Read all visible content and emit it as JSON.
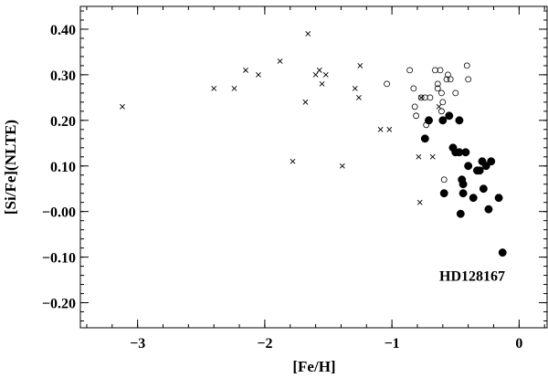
{
  "chart_data": {
    "type": "scatter",
    "xlabel": "[Fe/H]",
    "ylabel": "[Si/Fe](NLTE)",
    "xlim": [
      -3.45,
      0.22
    ],
    "ylim": [
      -0.255,
      0.45
    ],
    "x_ticks": [
      {
        "v": -3,
        "label": "−3"
      },
      {
        "v": -2,
        "label": "−2"
      },
      {
        "v": -1,
        "label": "−1"
      },
      {
        "v": 0,
        "label": "0"
      }
    ],
    "y_ticks": [
      {
        "v": 0.4,
        "label": "0.40"
      },
      {
        "v": 0.3,
        "label": "0.30"
      },
      {
        "v": 0.2,
        "label": "0.20"
      },
      {
        "v": 0.1,
        "label": "0.10"
      },
      {
        "v": 0.0,
        "label": "−0.00"
      },
      {
        "v": -0.1,
        "label": "−0.10"
      },
      {
        "v": -0.2,
        "label": "−0.20"
      }
    ],
    "x_minor_step": 0.2,
    "y_minor_step": 0.02,
    "grid": false,
    "series": [
      {
        "marker": "cross",
        "points": [
          [
            -3.12,
            0.23
          ],
          [
            -2.4,
            0.27
          ],
          [
            -2.24,
            0.27
          ],
          [
            -2.15,
            0.31
          ],
          [
            -2.05,
            0.3
          ],
          [
            -1.88,
            0.33
          ],
          [
            -1.78,
            0.11
          ],
          [
            -1.68,
            0.24
          ],
          [
            -1.66,
            0.39
          ],
          [
            -1.6,
            0.3
          ],
          [
            -1.57,
            0.31
          ],
          [
            -1.55,
            0.28
          ],
          [
            -1.52,
            0.3
          ],
          [
            -1.39,
            0.1
          ],
          [
            -1.29,
            0.27
          ],
          [
            -1.26,
            0.25
          ],
          [
            -1.25,
            0.32
          ],
          [
            -1.09,
            0.18
          ],
          [
            -1.02,
            0.18
          ],
          [
            -0.79,
            0.12
          ],
          [
            -0.78,
            0.02
          ],
          [
            -0.77,
            0.25
          ],
          [
            -0.68,
            0.12
          ],
          [
            -0.63,
            0.23
          ]
        ]
      },
      {
        "marker": "open-circle",
        "points": [
          [
            -1.04,
            0.28
          ],
          [
            -0.86,
            0.31
          ],
          [
            -0.83,
            0.27
          ],
          [
            -0.82,
            0.23
          ],
          [
            -0.81,
            0.21
          ],
          [
            -0.77,
            0.25
          ],
          [
            -0.74,
            0.25
          ],
          [
            -0.73,
            0.19
          ],
          [
            -0.7,
            0.25
          ],
          [
            -0.66,
            0.31
          ],
          [
            -0.64,
            0.28
          ],
          [
            -0.64,
            0.27
          ],
          [
            -0.62,
            0.31
          ],
          [
            -0.61,
            0.26
          ],
          [
            -0.61,
            0.22
          ],
          [
            -0.6,
            0.24
          ],
          [
            -0.59,
            0.07
          ],
          [
            -0.57,
            0.29
          ],
          [
            -0.56,
            0.3
          ],
          [
            -0.54,
            0.29
          ],
          [
            -0.5,
            0.26
          ],
          [
            -0.41,
            0.32
          ],
          [
            -0.4,
            0.29
          ]
        ]
      },
      {
        "marker": "filled-circle",
        "points": [
          [
            -0.74,
            0.16
          ],
          [
            -0.71,
            0.2
          ],
          [
            -0.6,
            0.2
          ],
          [
            -0.59,
            0.04
          ],
          [
            -0.55,
            0.21
          ],
          [
            -0.52,
            0.14
          ],
          [
            -0.5,
            0.13
          ],
          [
            -0.47,
            0.2
          ],
          [
            -0.47,
            0.13
          ],
          [
            -0.46,
            -0.005
          ],
          [
            -0.45,
            0.07
          ],
          [
            -0.44,
            0.06
          ],
          [
            -0.44,
            0.04
          ],
          [
            -0.42,
            0.13
          ],
          [
            -0.4,
            0.1
          ],
          [
            -0.36,
            0.03
          ],
          [
            -0.33,
            0.09
          ],
          [
            -0.31,
            0.09
          ],
          [
            -0.29,
            0.11
          ],
          [
            -0.28,
            0.05
          ],
          [
            -0.26,
            0.1
          ],
          [
            -0.24,
            0.005
          ],
          [
            -0.22,
            0.11
          ],
          [
            -0.16,
            0.03
          ],
          [
            -0.13,
            -0.09
          ]
        ]
      }
    ],
    "annotations": [
      {
        "text": "HD128167",
        "x": -0.11,
        "y": -0.14,
        "anchor": "end"
      }
    ]
  }
}
